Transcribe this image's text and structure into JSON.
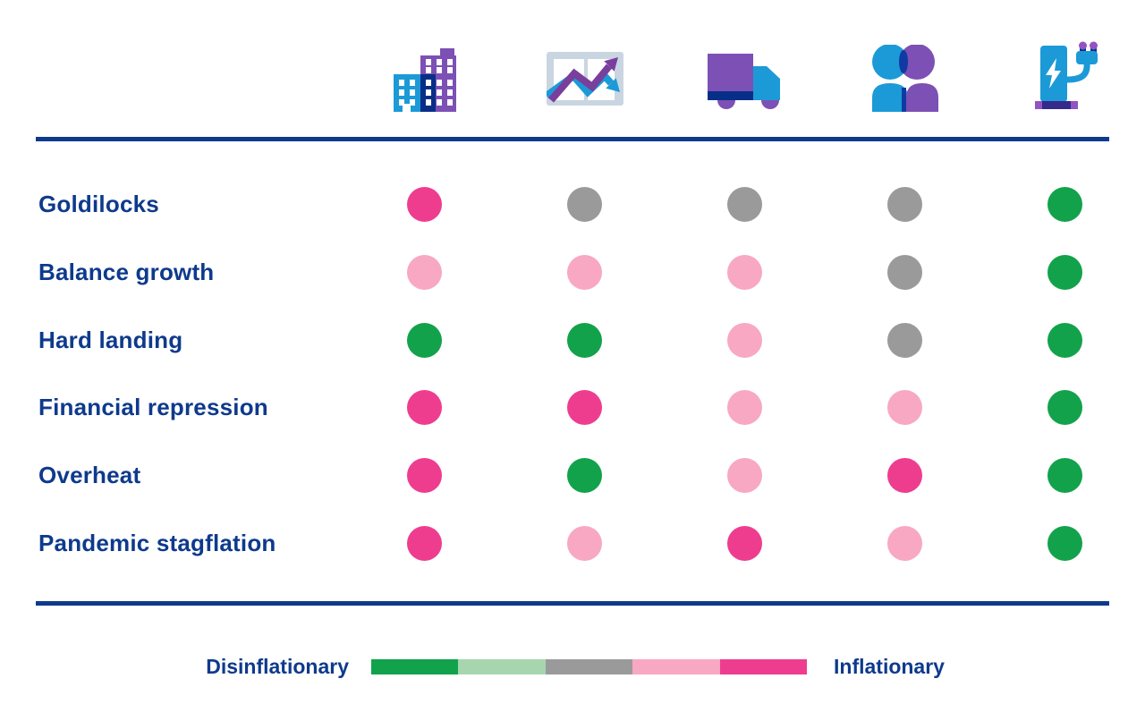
{
  "chart_data": {
    "type": "heatmap",
    "rows": [
      "Goldilocks",
      "Balance growth",
      "Hard landing",
      "Financial repression",
      "Overheat",
      "Pandemic stagflation"
    ],
    "columns": [
      "buildings",
      "line-chart",
      "truck",
      "people",
      "ev-charger"
    ],
    "scale_levels": [
      "disinflationary",
      "mildly_disinflationary",
      "neutral",
      "mildly_inflationary",
      "strongly_inflationary"
    ],
    "values": [
      [
        "strongly_inflationary",
        "neutral",
        "neutral",
        "neutral",
        "disinflationary"
      ],
      [
        "mildly_inflationary",
        "mildly_inflationary",
        "mildly_inflationary",
        "neutral",
        "disinflationary"
      ],
      [
        "disinflationary",
        "disinflationary",
        "mildly_inflationary",
        "neutral",
        "disinflationary"
      ],
      [
        "strongly_inflationary",
        "strongly_inflationary",
        "mildly_inflationary",
        "mildly_inflationary",
        "disinflationary"
      ],
      [
        "strongly_inflationary",
        "disinflationary",
        "mildly_inflationary",
        "strongly_inflationary",
        "disinflationary"
      ],
      [
        "strongly_inflationary",
        "mildly_inflationary",
        "strongly_inflationary",
        "mildly_inflationary",
        "disinflationary"
      ]
    ],
    "legend": {
      "left": "Disinflationary",
      "right": "Inflationary",
      "position": "bottom"
    },
    "grid": false
  },
  "legend": {
    "left_label": "Disinflationary",
    "right_label": "Inflationary",
    "segments": [
      "disinflationary",
      "mildly_disinflationary",
      "neutral",
      "mildly_inflationary",
      "strongly_inflationary"
    ]
  },
  "colors": {
    "navy": "#0E3A8C",
    "level_disinflationary": "#12A24B",
    "level_mildly_disinflationary": "#A7D6AE",
    "level_neutral": "#9A9A9A",
    "level_mildly_inflationary": "#F8A8C2",
    "level_strongly_inflationary": "#EE3D8F"
  },
  "icons": [
    "buildings-icon",
    "line-chart-icon",
    "truck-icon",
    "people-icon",
    "ev-charger-icon"
  ]
}
